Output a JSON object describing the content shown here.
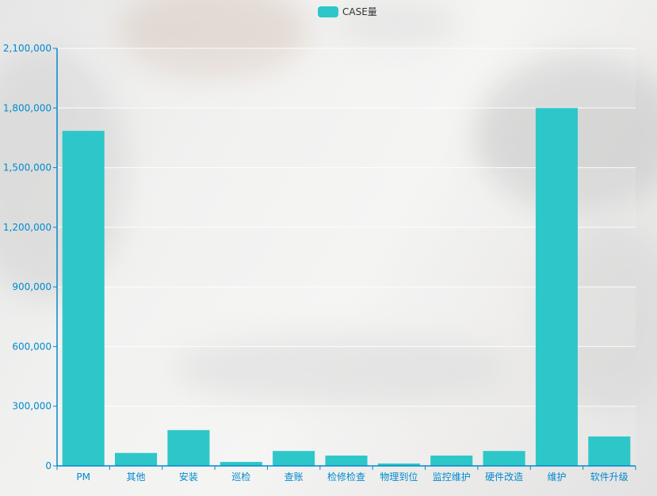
{
  "colors": {
    "bar": "#2ec7c9",
    "axis": "#008acd",
    "tick_text": "#008acd",
    "grid": "#ffffff"
  },
  "legend": {
    "label": "CASE量"
  },
  "chart_data": {
    "type": "bar",
    "categories": [
      "PM",
      "其他",
      "安装",
      "巡检",
      "查账",
      "检修检查",
      "物理到位",
      "监控维护",
      "硬件改造",
      "维护",
      "软件升级"
    ],
    "series": [
      {
        "name": "CASE量",
        "values": [
          1685000,
          65000,
          180000,
          20000,
          75000,
          52000,
          12000,
          52000,
          75000,
          1800000,
          148000
        ]
      }
    ],
    "y_ticks": [
      "0",
      "300,000",
      "600,000",
      "900,000",
      "1,200,000",
      "1,500,000",
      "1,800,000",
      "2,100,000"
    ],
    "ylim": [
      0,
      2100000
    ],
    "grid": true,
    "legend_position": "top-center"
  }
}
